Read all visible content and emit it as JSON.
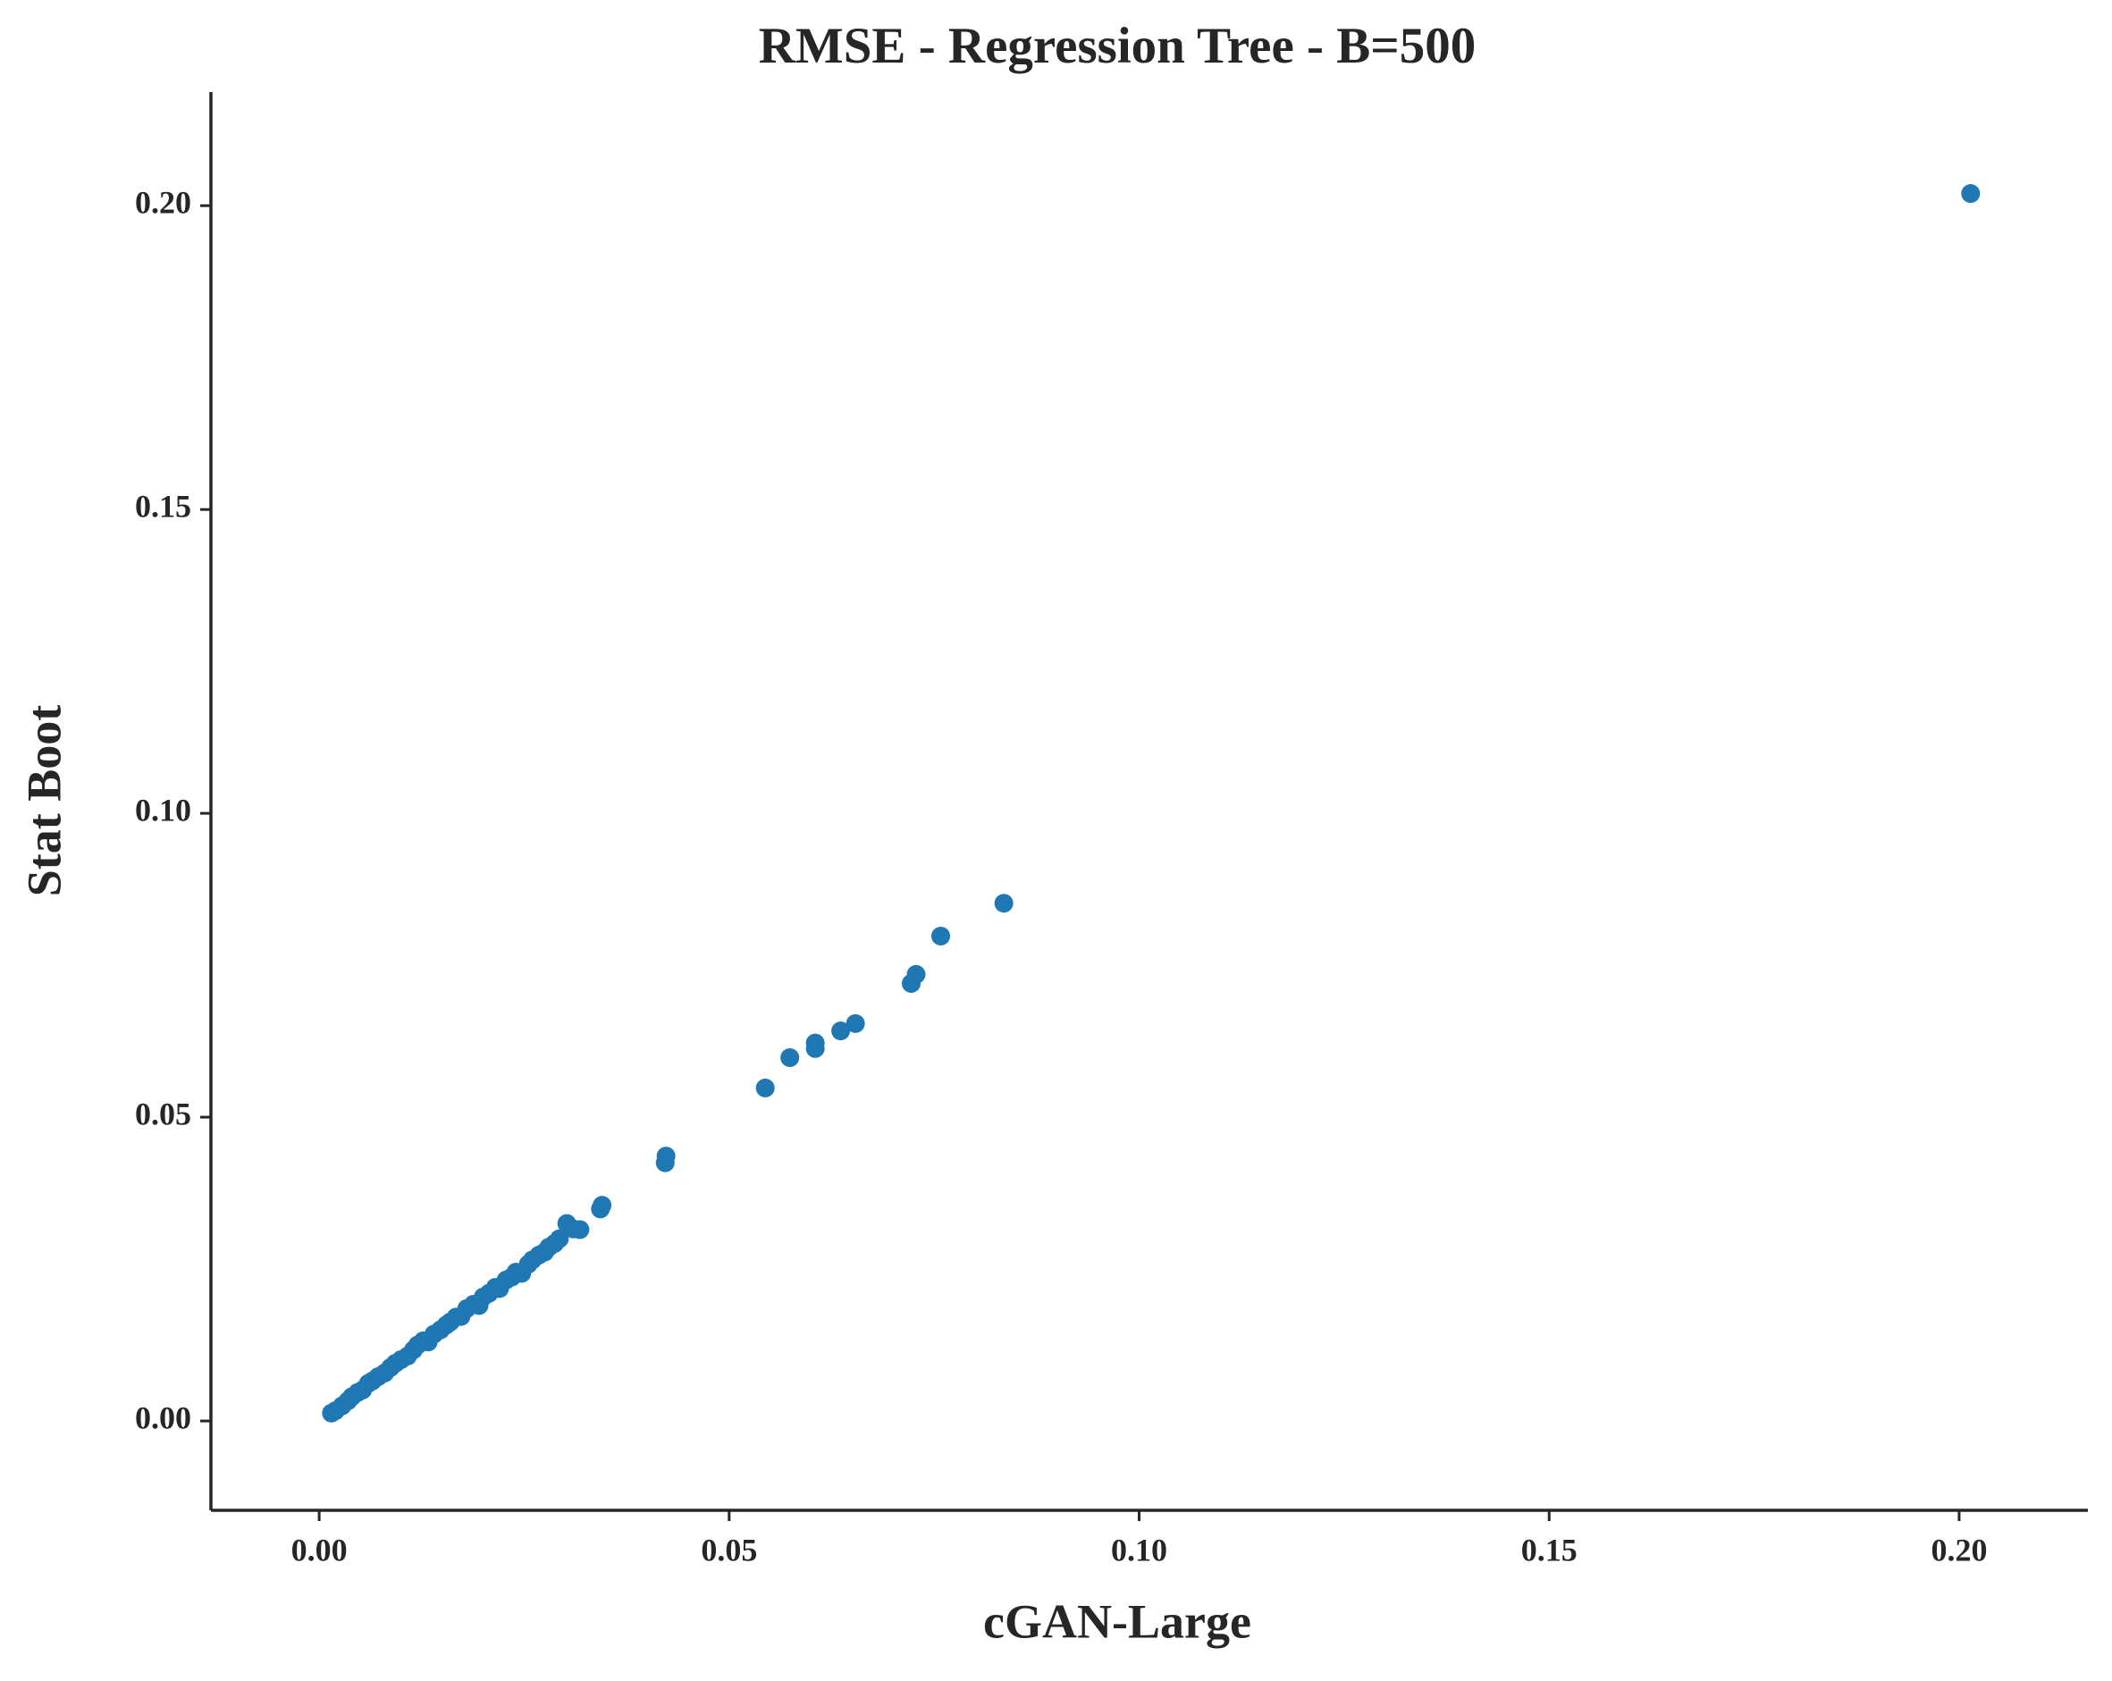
{
  "chart_data": {
    "type": "scatter",
    "title": "RMSE - Regression Tree - B=500",
    "x_label": "cGAN-Large",
    "y_label": "Stat Boot",
    "color": "#1f77b4",
    "xlim": [
      -0.0132,
      0.2157
    ],
    "ylim": [
      -0.0147,
      0.2187
    ],
    "xticks": [
      {
        "value": 0,
        "label": "0.00"
      },
      0.05,
      {
        "value": 0.1,
        "label": "0.10"
      },
      0.15,
      {
        "value": 0.2,
        "label": "0.20"
      }
    ],
    "yticks": [
      {
        "value": 0,
        "label": "0.00"
      },
      0.05,
      {
        "value": 0.1,
        "label": "0.10"
      },
      0.15,
      {
        "value": 0.2,
        "label": "0.20"
      }
    ],
    "x": [
      0.0015,
      0.002,
      0.0028,
      0.0035,
      0.004,
      0.0047,
      0.0053,
      0.006,
      0.0065,
      0.0072,
      0.008,
      0.0087,
      0.0093,
      0.01,
      0.0108,
      0.0115,
      0.012,
      0.0127,
      0.0133,
      0.014,
      0.0148,
      0.0155,
      0.016,
      0.0167,
      0.0173,
      0.018,
      0.0188,
      0.0195,
      0.02,
      0.0207,
      0.0215,
      0.022,
      0.0228,
      0.0235,
      0.024,
      0.0247,
      0.0255,
      0.026,
      0.0268,
      0.0275,
      0.028,
      0.0287,
      0.0293,
      0.0302,
      0.031,
      0.0318,
      0.0343,
      0.0345,
      0.0422,
      0.0423,
      0.0544,
      0.0574,
      0.0605,
      0.0605,
      0.0636,
      0.0654,
      0.0722,
      0.0728,
      0.0758,
      0.0835,
      0.2014
    ],
    "y": [
      0.0013,
      0.0017,
      0.0025,
      0.0033,
      0.004,
      0.0047,
      0.0051,
      0.0062,
      0.0066,
      0.0073,
      0.0079,
      0.0088,
      0.0095,
      0.0101,
      0.0107,
      0.0117,
      0.0125,
      0.0132,
      0.013,
      0.0143,
      0.015,
      0.0158,
      0.0163,
      0.0171,
      0.0172,
      0.0185,
      0.0192,
      0.019,
      0.0204,
      0.021,
      0.022,
      0.0218,
      0.0232,
      0.0237,
      0.0245,
      0.0243,
      0.0258,
      0.0265,
      0.0273,
      0.0278,
      0.0286,
      0.0292,
      0.03,
      0.0325,
      0.0316,
      0.0315,
      0.0349,
      0.0355,
      0.0425,
      0.0436,
      0.0548,
      0.0598,
      0.0613,
      0.0622,
      0.0642,
      0.0654,
      0.072,
      0.0735,
      0.0798,
      0.0852,
      0.202
    ]
  }
}
